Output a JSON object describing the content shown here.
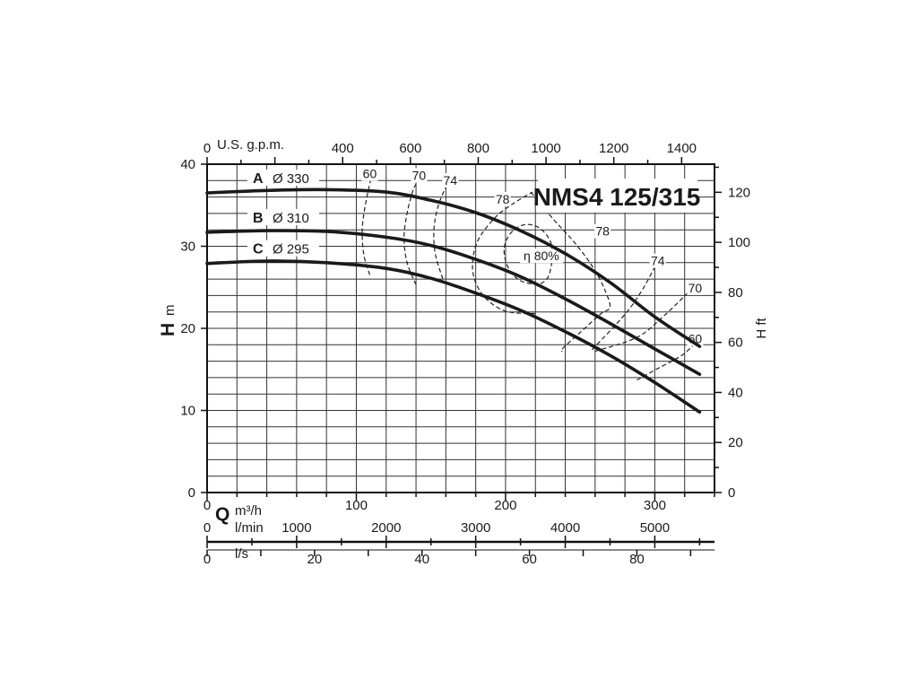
{
  "chart_data": {
    "type": "line",
    "title": "NMS4 125/315",
    "x": {
      "label": "Q",
      "unit": "m³/h",
      "lim": [
        0,
        340
      ],
      "ticks": [
        0,
        100,
        200,
        300
      ]
    },
    "y": {
      "label": "H",
      "unit": "m",
      "lim": [
        0,
        40
      ],
      "ticks": [
        0,
        10,
        20,
        30,
        40
      ]
    },
    "secondary_axes": {
      "top": {
        "label": "U.S. g.p.m.",
        "factor": 4.4029,
        "ticks": [
          0,
          400,
          600,
          800,
          1000,
          1200,
          1400
        ]
      },
      "right": {
        "label": "H ft",
        "factor": 3.28084,
        "ticks": [
          0,
          20,
          40,
          60,
          80,
          100,
          120
        ]
      },
      "lmin": {
        "label": "l/min",
        "factor": 16.6667,
        "ticks": [
          0,
          1000,
          2000,
          3000,
          4000,
          5000
        ]
      },
      "ls": {
        "label": "l/s",
        "factor": 0.27778,
        "ticks": [
          0,
          20,
          40,
          60,
          80
        ]
      }
    },
    "grid": true,
    "series": [
      {
        "letter": "A",
        "diameter": "Ø 330",
        "points": [
          [
            0,
            36.5
          ],
          [
            40,
            36.8
          ],
          [
            80,
            36.9
          ],
          [
            120,
            36.6
          ],
          [
            150,
            35.6
          ],
          [
            180,
            34.1
          ],
          [
            210,
            31.9
          ],
          [
            240,
            29.1
          ],
          [
            270,
            25.6
          ],
          [
            300,
            21.4
          ],
          [
            330,
            17.8
          ]
        ]
      },
      {
        "letter": "B",
        "diameter": "Ø 310",
        "points": [
          [
            0,
            31.7
          ],
          [
            40,
            31.9
          ],
          [
            80,
            31.8
          ],
          [
            120,
            31.1
          ],
          [
            150,
            30.1
          ],
          [
            180,
            28.4
          ],
          [
            210,
            26.3
          ],
          [
            240,
            23.6
          ],
          [
            270,
            20.6
          ],
          [
            300,
            17.5
          ],
          [
            330,
            14.4
          ]
        ]
      },
      {
        "letter": "C",
        "diameter": "Ø 295",
        "points": [
          [
            0,
            27.9
          ],
          [
            40,
            28.2
          ],
          [
            80,
            28.0
          ],
          [
            120,
            27.3
          ],
          [
            150,
            26.1
          ],
          [
            180,
            24.3
          ],
          [
            210,
            22.2
          ],
          [
            240,
            19.6
          ],
          [
            270,
            16.7
          ],
          [
            300,
            13.4
          ],
          [
            330,
            9.8
          ]
        ]
      }
    ],
    "efficiency_contours": [
      {
        "label": "60",
        "points": [
          [
            109,
            26.5
          ],
          [
            105,
            29
          ],
          [
            104,
            32
          ],
          [
            106,
            35
          ],
          [
            110,
            38.4
          ]
        ]
      },
      {
        "label": "70",
        "points": [
          [
            140,
            25.3
          ],
          [
            134,
            28
          ],
          [
            132,
            31
          ],
          [
            134,
            34
          ],
          [
            138,
            36.8
          ],
          [
            142,
            38.2
          ]
        ]
      },
      {
        "label": "74",
        "points": [
          [
            158,
            26.0
          ],
          [
            153,
            29
          ],
          [
            152,
            32
          ],
          [
            155,
            35
          ],
          [
            161,
            37.6
          ]
        ]
      },
      {
        "label": "78",
        "points": [
          [
            220,
            21.8
          ],
          [
            200,
            22.1
          ],
          [
            185,
            24
          ],
          [
            178,
            27
          ],
          [
            181,
            30.5
          ],
          [
            193,
            33.5
          ],
          [
            206,
            35.3
          ],
          [
            218,
            36.6
          ]
        ]
      },
      {
        "label": "η 80%",
        "points": [
          [
            222,
            25.3
          ],
          [
            210,
            25.8
          ],
          [
            202,
            27.3
          ],
          [
            199,
            29.6
          ],
          [
            203,
            31.5
          ],
          [
            212,
            32.6
          ],
          [
            222,
            32.3
          ],
          [
            230,
            30.6
          ],
          [
            231,
            28.1
          ],
          [
            228,
            26.1
          ],
          [
            222,
            25.3
          ]
        ]
      },
      {
        "label": "78",
        "points": [
          [
            217,
            36.6
          ],
          [
            232,
            33.3
          ],
          [
            246,
            30.5
          ],
          [
            258,
            27.6
          ],
          [
            266,
            24.9
          ],
          [
            270,
            22.6
          ],
          [
            264,
            21.8
          ],
          [
            250,
            19.5
          ],
          [
            238,
            17.5
          ],
          [
            238,
            17.2
          ]
        ]
      },
      {
        "label": "74",
        "points": [
          [
            258,
            17.4
          ],
          [
            280,
            21.7
          ],
          [
            292,
            24.8
          ],
          [
            300,
            27.5
          ]
        ]
      },
      {
        "label": "70",
        "points": [
          [
            260,
            17.2
          ],
          [
            288,
            18.9
          ],
          [
            306,
            21.5
          ],
          [
            322,
            24.3
          ]
        ]
      },
      {
        "label": "60",
        "points": [
          [
            288,
            13.7
          ],
          [
            302,
            15.1
          ],
          [
            318,
            16.7
          ],
          [
            326,
            18.0
          ]
        ]
      }
    ],
    "contour_labels": [
      {
        "text": "60",
        "x": 109,
        "y": 38.4
      },
      {
        "text": "70",
        "x": 142,
        "y": 38.2
      },
      {
        "text": "74",
        "x": 163,
        "y": 37.6
      },
      {
        "text": "78",
        "x": 198,
        "y": 35.3
      },
      {
        "text": "η 80%",
        "x": 224,
        "y": 28.4
      },
      {
        "text": "78",
        "x": 265,
        "y": 31.4
      },
      {
        "text": "74",
        "x": 302,
        "y": 27.8
      },
      {
        "text": "70",
        "x": 327,
        "y": 24.5
      },
      {
        "text": "60",
        "x": 327,
        "y": 18.3
      }
    ]
  }
}
